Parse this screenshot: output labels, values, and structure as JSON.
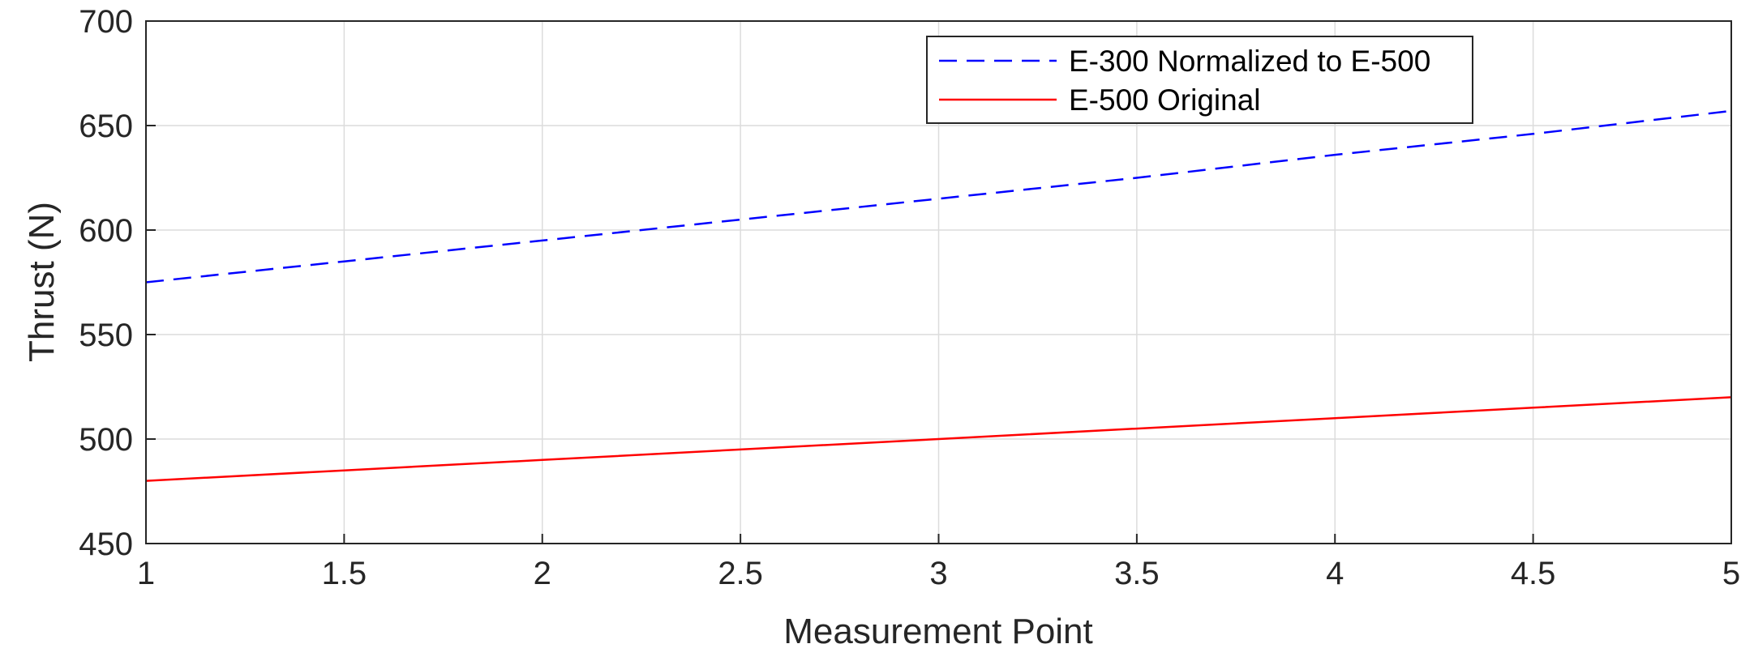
{
  "chart_data": {
    "type": "line",
    "title": "",
    "xlabel": "Measurement Point",
    "ylabel": "Thrust (N)",
    "xlim": [
      1,
      5
    ],
    "ylim": [
      450,
      700
    ],
    "xticks": [
      1,
      1.5,
      2,
      2.5,
      3,
      3.5,
      4,
      4.5,
      5
    ],
    "xtick_labels": [
      "1",
      "1.5",
      "2",
      "2.5",
      "3",
      "3.5",
      "4",
      "4.5",
      "5"
    ],
    "yticks": [
      450,
      500,
      550,
      600,
      650,
      700
    ],
    "ytick_labels": [
      "450",
      "500",
      "550",
      "600",
      "650",
      "700"
    ],
    "grid": true,
    "legend_position": "top-right",
    "x": [
      1,
      1.5,
      2,
      2.5,
      3,
      3.5,
      4,
      4.5,
      5
    ],
    "series": [
      {
        "name": "E-300 Normalized to E-500",
        "color": "#0000ff",
        "line_style": "dashed",
        "values": [
          575,
          585,
          595,
          605,
          615,
          625,
          636,
          646,
          657
        ]
      },
      {
        "name": "E-500 Original",
        "color": "#ff0000",
        "line_style": "solid",
        "values": [
          480,
          485,
          490,
          495,
          500,
          505,
          510,
          515,
          520
        ]
      }
    ]
  }
}
